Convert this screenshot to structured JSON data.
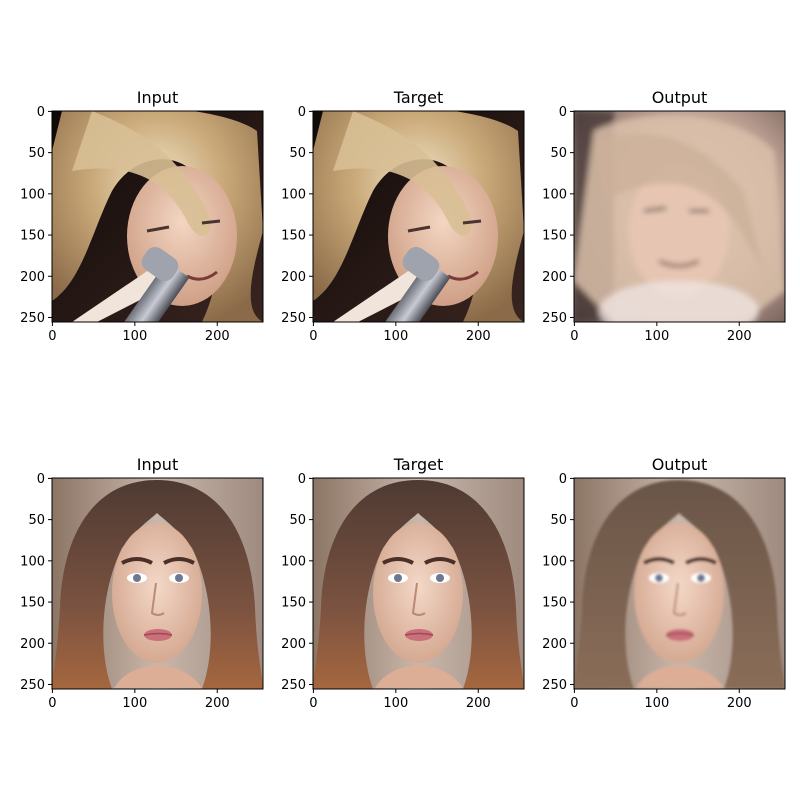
{
  "figure": {
    "rows": [
      {
        "panels": [
          {
            "title": "Input",
            "image": "singer-with-microphone-sharp"
          },
          {
            "title": "Target",
            "image": "singer-with-microphone-sharp"
          },
          {
            "title": "Output",
            "image": "singer-blurred-reconstruction"
          }
        ]
      },
      {
        "panels": [
          {
            "title": "Input",
            "image": "woman-portrait-long-brown-hair"
          },
          {
            "title": "Target",
            "image": "woman-portrait-long-brown-hair"
          },
          {
            "title": "Output",
            "image": "woman-portrait-smooth-reconstruction"
          }
        ]
      }
    ],
    "x_ticks": [
      "0",
      "100",
      "200"
    ],
    "y_ticks": [
      "0",
      "50",
      "100",
      "150",
      "200",
      "250"
    ],
    "colors": {
      "background": "#ffffff",
      "axis": "#000000",
      "singer_hair": "#c9a878",
      "singer_bg": "#1a1210",
      "portrait_hair": "#6b4a3a",
      "portrait_bg": "#b9a79a",
      "skin": "#e6bfa8"
    }
  }
}
